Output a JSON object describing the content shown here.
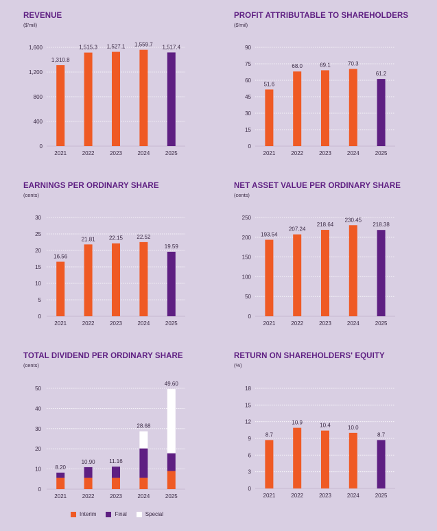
{
  "colors": {
    "orange": "#ef5a24",
    "purple": "#5e1f82",
    "white": "#ffffff",
    "title": "#5e1f82",
    "text": "#3a2a44",
    "grid": "#ffffff"
  },
  "chart_data": [
    {
      "id": "revenue",
      "type": "bar",
      "title": "REVENUE",
      "unit": "($'mil)",
      "categories": [
        "2021",
        "2022",
        "2023",
        "2024",
        "2025"
      ],
      "values": [
        1310.8,
        1515.3,
        1527.1,
        1559.7,
        1517.4
      ],
      "labels": [
        "1,310.8",
        "1,515.3",
        "1,527.1",
        "1,559.7",
        "1,517.4"
      ],
      "bar_colors": [
        "orange",
        "orange",
        "orange",
        "orange",
        "purple"
      ],
      "yticks": [
        0,
        400,
        800,
        1200,
        1600
      ],
      "ytick_labels": [
        "0",
        "400",
        "800",
        "1,200",
        "1,600"
      ],
      "ylim": [
        0,
        1600
      ],
      "grid": true
    },
    {
      "id": "profit",
      "type": "bar",
      "title": "PROFIT ATTRIBUTABLE TO SHAREHOLDERS",
      "unit": "($'mil)",
      "categories": [
        "2021",
        "2022",
        "2023",
        "2024",
        "2025"
      ],
      "values": [
        51.6,
        68.0,
        69.1,
        70.3,
        61.2
      ],
      "labels": [
        "51.6",
        "68.0",
        "69.1",
        "70.3",
        "61.2"
      ],
      "bar_colors": [
        "orange",
        "orange",
        "orange",
        "orange",
        "purple"
      ],
      "yticks": [
        0,
        15,
        30,
        45,
        60,
        75,
        90
      ],
      "ytick_labels": [
        "0",
        "15",
        "30",
        "45",
        "60",
        "75",
        "90"
      ],
      "ylim": [
        0,
        90
      ],
      "grid": true
    },
    {
      "id": "eps",
      "type": "bar",
      "title": "EARNINGS PER ORDINARY SHARE",
      "unit": "(cents)",
      "categories": [
        "2021",
        "2022",
        "2023",
        "2024",
        "2025"
      ],
      "values": [
        16.56,
        21.81,
        22.15,
        22.52,
        19.59
      ],
      "labels": [
        "16.56",
        "21.81",
        "22.15",
        "22.52",
        "19.59"
      ],
      "bar_colors": [
        "orange",
        "orange",
        "orange",
        "orange",
        "purple"
      ],
      "yticks": [
        0,
        5,
        10,
        15,
        20,
        25,
        30
      ],
      "ytick_labels": [
        "0",
        "5",
        "10",
        "15",
        "20",
        "25",
        "30"
      ],
      "ylim": [
        0,
        30
      ],
      "grid": true
    },
    {
      "id": "nav",
      "type": "bar",
      "title": "NET ASSET VALUE PER ORDINARY SHARE",
      "unit": "(cents)",
      "categories": [
        "2021",
        "2022",
        "2023",
        "2024",
        "2025"
      ],
      "values": [
        193.54,
        207.24,
        218.64,
        230.45,
        218.38
      ],
      "labels": [
        "193.54",
        "207.24",
        "218.64",
        "230.45",
        "218.38"
      ],
      "bar_colors": [
        "orange",
        "orange",
        "orange",
        "orange",
        "purple"
      ],
      "yticks": [
        0,
        50,
        100,
        150,
        200,
        250
      ],
      "ytick_labels": [
        "0",
        "50",
        "100",
        "150",
        "200",
        "250"
      ],
      "ylim": [
        0,
        250
      ],
      "grid": true
    },
    {
      "id": "dividend",
      "type": "bar",
      "stacked": true,
      "title": "TOTAL DIVIDEND PER ORDINARY SHARE",
      "unit": "(cents)",
      "categories": [
        "2021",
        "2022",
        "2023",
        "2024",
        "2025"
      ],
      "series": [
        {
          "name": "Interim",
          "color": "orange",
          "values": [
            5.6,
            5.6,
            5.6,
            5.6,
            9.0
          ]
        },
        {
          "name": "Final",
          "color": "purple",
          "values": [
            2.6,
            5.3,
            5.56,
            14.6,
            8.8
          ]
        },
        {
          "name": "Special",
          "color": "white",
          "values": [
            0,
            0,
            0,
            8.48,
            31.8
          ]
        }
      ],
      "totals": [
        8.2,
        10.9,
        11.16,
        28.68,
        49.6
      ],
      "labels": [
        "8.20",
        "10.90",
        "11.16",
        "28.68",
        "49.60"
      ],
      "yticks": [
        0,
        10,
        20,
        30,
        40,
        50
      ],
      "ytick_labels": [
        "0",
        "10",
        "20",
        "30",
        "40",
        "50"
      ],
      "ylim": [
        0,
        50
      ],
      "grid": true,
      "legend": "bottom"
    },
    {
      "id": "roe",
      "type": "bar",
      "title": "RETURN ON SHAREHOLDERS' EQUITY",
      "unit": "(%)",
      "categories": [
        "2021",
        "2022",
        "2023",
        "2024",
        "2025"
      ],
      "values": [
        8.7,
        10.9,
        10.4,
        10.0,
        8.7
      ],
      "labels": [
        "8.7",
        "10.9",
        "10.4",
        "10.0",
        "8.7"
      ],
      "bar_colors": [
        "orange",
        "orange",
        "orange",
        "orange",
        "purple"
      ],
      "yticks": [
        0,
        3,
        6,
        9,
        12,
        15,
        18
      ],
      "ytick_labels": [
        "0",
        "3",
        "6",
        "9",
        "12",
        "15",
        "18"
      ],
      "ylim": [
        0,
        18
      ],
      "grid": true
    }
  ],
  "legend": [
    {
      "label": "Interim",
      "color": "orange"
    },
    {
      "label": "Final",
      "color": "purple"
    },
    {
      "label": "Special",
      "color": "white"
    }
  ]
}
